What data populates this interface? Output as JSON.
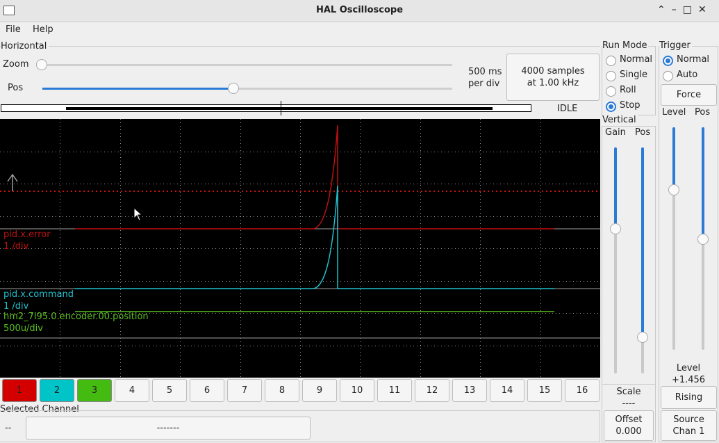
{
  "window": {
    "title": "HAL Oscilloscope"
  },
  "menu": [
    "File",
    "Help"
  ],
  "horizontal": {
    "title": "Horizontal",
    "zoom_label": "Zoom",
    "pos_label": "Pos",
    "rate": [
      "500 ms",
      "per div"
    ],
    "samples": [
      "4000 samples",
      "at 1.00 kHz"
    ],
    "state": "IDLE"
  },
  "channels": [
    {
      "name": "pid.x.error",
      "scale": "1 /div"
    },
    {
      "name": "pid.x.command",
      "scale": "1 /div"
    },
    {
      "name": "hm2_7i95.0.encoder.00.position",
      "scale": "500u/div"
    }
  ],
  "channel_buttons": [
    "1",
    "2",
    "3",
    "4",
    "5",
    "6",
    "7",
    "8",
    "9",
    "10",
    "11",
    "12",
    "13",
    "14",
    "15",
    "16"
  ],
  "selected_channel": {
    "title": "Selected Channel",
    "id": "--",
    "name": "-------"
  },
  "run_mode": {
    "title": "Run Mode",
    "options": [
      "Normal",
      "Single",
      "Roll",
      "Stop"
    ]
  },
  "trigger": {
    "title": "Trigger",
    "options": [
      "Normal",
      "Auto"
    ],
    "force": "Force",
    "level_label": "Level",
    "pos_label": "Pos",
    "level_caption": "Level",
    "level_value": "+1.456",
    "edge": "Rising",
    "source": [
      "Source",
      "Chan 1"
    ]
  },
  "vertical": {
    "title": "Vertical",
    "gain_label": "Gain",
    "pos_label": "Pos",
    "scale_label": "Scale",
    "scale_value": "----",
    "offset_label": "Offset",
    "offset_value": "0.000"
  }
}
